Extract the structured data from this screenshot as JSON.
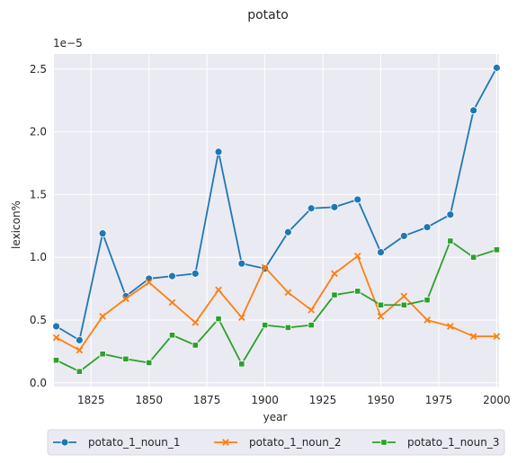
{
  "chart_data": {
    "type": "line",
    "title": "potato",
    "xlabel": "year",
    "ylabel": "lexicon%",
    "y_offset_text": "1e−5",
    "x": [
      1810,
      1820,
      1830,
      1840,
      1850,
      1860,
      1870,
      1880,
      1890,
      1900,
      1910,
      1920,
      1930,
      1940,
      1950,
      1960,
      1970,
      1980,
      1990,
      2000
    ],
    "xlim": [
      1809,
      2001
    ],
    "ylim": [
      -0.03,
      2.62
    ],
    "x_ticks": [
      1825,
      1850,
      1875,
      1900,
      1925,
      1950,
      1975,
      2000
    ],
    "y_ticks": [
      0.0,
      0.5,
      1.0,
      1.5,
      2.0,
      2.5
    ],
    "y_tick_labels": [
      "0.0",
      "0.5",
      "1.0",
      "1.5",
      "2.0",
      "2.5"
    ],
    "grid": true,
    "background": "#eaeaf2",
    "legend_position": "bottom-center, below axes",
    "series": [
      {
        "name": "potato_1_noun_1",
        "color": "#1f77b4",
        "marker": "circle",
        "values": [
          0.45,
          0.34,
          1.19,
          0.69,
          0.83,
          0.85,
          0.87,
          1.84,
          0.95,
          0.91,
          1.2,
          1.39,
          1.4,
          1.46,
          1.04,
          1.17,
          1.24,
          1.34,
          2.17,
          2.51
        ]
      },
      {
        "name": "potato_1_noun_2",
        "color": "#ff7f0e",
        "marker": "x",
        "values": [
          0.36,
          0.26,
          0.53,
          0.67,
          0.8,
          0.64,
          0.48,
          0.74,
          0.52,
          0.92,
          0.72,
          0.58,
          0.87,
          1.01,
          0.53,
          0.69,
          0.5,
          0.45,
          0.37,
          0.37
        ]
      },
      {
        "name": "potato_1_noun_3",
        "color": "#2ca02c",
        "marker": "square",
        "values": [
          0.18,
          0.09,
          0.23,
          0.19,
          0.16,
          0.38,
          0.3,
          0.51,
          0.15,
          0.46,
          0.44,
          0.46,
          0.7,
          0.73,
          0.62,
          0.62,
          0.66,
          1.13,
          1.0,
          1.06
        ]
      }
    ]
  }
}
